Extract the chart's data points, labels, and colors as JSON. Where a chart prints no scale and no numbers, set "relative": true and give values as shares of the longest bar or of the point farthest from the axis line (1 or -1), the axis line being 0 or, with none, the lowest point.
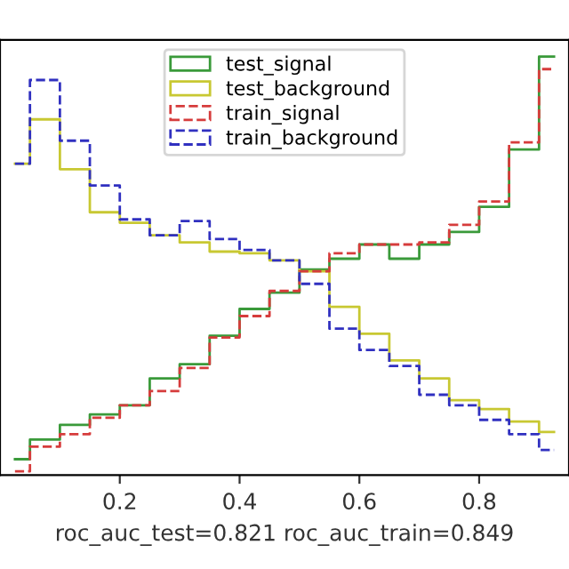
{
  "chart_data": {
    "type": "step",
    "relative": true,
    "xlabel": "roc_auc_test=0.821 roc_auc_train=0.849",
    "x": [
      0.025,
      0.075,
      0.125,
      0.175,
      0.225,
      0.275,
      0.325,
      0.375,
      0.425,
      0.475,
      0.525,
      0.575,
      0.625,
      0.675,
      0.725,
      0.775,
      0.825,
      0.875,
      0.925
    ],
    "xlim": [
      0,
      0.95
    ],
    "xticks": [
      0.2,
      0.4,
      0.6,
      0.8
    ],
    "grid": false,
    "legend": "top",
    "series": [
      {
        "name": "test_signal",
        "color": "#3a9a3a",
        "line_style": "solid",
        "values": [
          0.038,
          0.085,
          0.12,
          0.145,
          0.167,
          0.231,
          0.265,
          0.333,
          0.397,
          0.436,
          0.491,
          0.517,
          0.551,
          0.517,
          0.551,
          0.581,
          0.641,
          0.778,
          1.0
        ]
      },
      {
        "name": "test_background",
        "color": "#c8c832",
        "line_style": "solid",
        "values": [
          0.744,
          0.85,
          0.731,
          0.628,
          0.603,
          0.573,
          0.556,
          0.534,
          0.53,
          0.513,
          0.487,
          0.402,
          0.338,
          0.274,
          0.231,
          0.179,
          0.158,
          0.128,
          0.103
        ]
      },
      {
        "name": "train_signal",
        "color": "#d63c3c",
        "line_style": "dashed",
        "values": [
          0.009,
          0.068,
          0.098,
          0.137,
          0.167,
          0.201,
          0.256,
          0.329,
          0.38,
          0.44,
          0.487,
          0.53,
          0.551,
          0.551,
          0.556,
          0.598,
          0.654,
          0.795,
          0.97
        ]
      },
      {
        "name": "train_background",
        "color": "#3030c0",
        "line_style": "dashed",
        "values": [
          0.744,
          0.944,
          0.799,
          0.692,
          0.611,
          0.573,
          0.607,
          0.564,
          0.538,
          0.513,
          0.457,
          0.35,
          0.299,
          0.261,
          0.192,
          0.167,
          0.132,
          0.098,
          0.06
        ]
      }
    ]
  }
}
